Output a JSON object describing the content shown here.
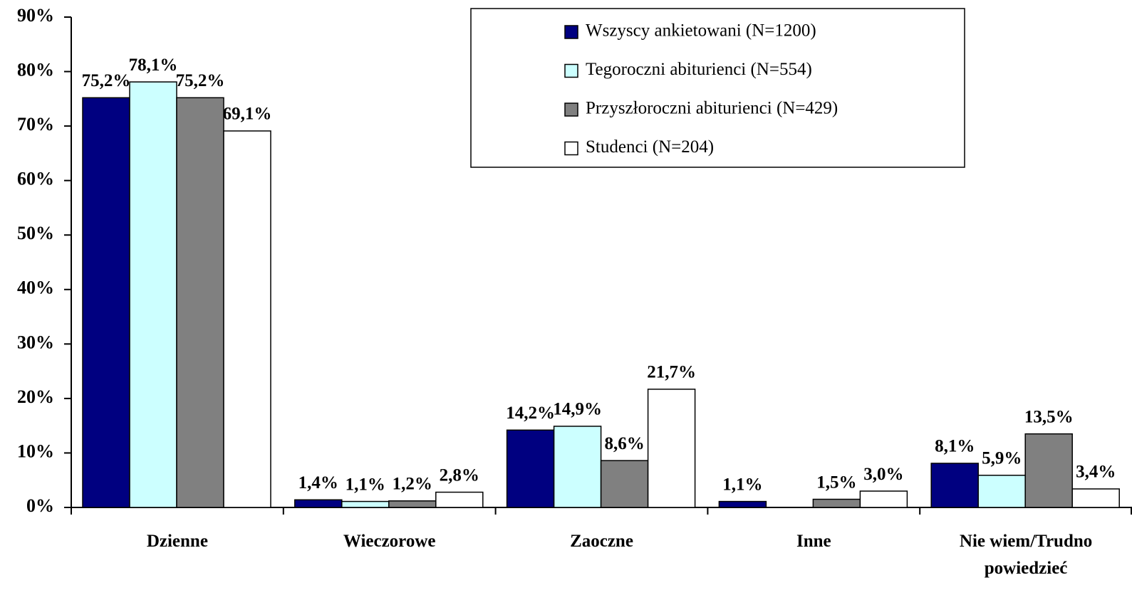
{
  "chart_data": {
    "type": "bar",
    "categories": [
      "Dzienne",
      "Wieczorowe",
      "Zaoczne",
      "Inne",
      "Nie wiem/Trudno powiedzieć"
    ],
    "series": [
      {
        "name": "Wszyscy ankietowani (N=1200)",
        "color": "#000080",
        "values": [
          75.2,
          1.4,
          14.2,
          1.1,
          8.1
        ],
        "value_labels": [
          "75,2%",
          "1,4%",
          "14,2%",
          "1,1%",
          "8,1%"
        ]
      },
      {
        "name": "Tegoroczni abiturienci (N=554)",
        "color": "#ccffff",
        "values": [
          78.1,
          1.1,
          14.9,
          null,
          5.9
        ],
        "value_labels": [
          "78,1%",
          "1,1%",
          "14,9%",
          null,
          "5,9%"
        ]
      },
      {
        "name": "Przyszłoroczni abiturienci (N=429)",
        "color": "#808080",
        "values": [
          75.2,
          1.2,
          8.6,
          1.5,
          13.5
        ],
        "value_labels": [
          "75,2%",
          "1,2%",
          "8,6%",
          "1,5%",
          "13,5%"
        ]
      },
      {
        "name": "Studenci (N=204)",
        "color": "#ffffff",
        "values": [
          69.1,
          2.8,
          21.7,
          3.0,
          3.4
        ],
        "value_labels": [
          "69,1%",
          "2,8%",
          "21,7%",
          "3,0%",
          "3,4%"
        ]
      }
    ],
    "ylim": [
      0,
      90
    ],
    "yticks": [
      {
        "value": 0,
        "label": "0%"
      },
      {
        "value": 10,
        "label": "10%"
      },
      {
        "value": 20,
        "label": "20%"
      },
      {
        "value": 30,
        "label": "30%"
      },
      {
        "value": 40,
        "label": "40%"
      },
      {
        "value": 50,
        "label": "50%"
      },
      {
        "value": 60,
        "label": "60%"
      },
      {
        "value": 70,
        "label": "70%"
      },
      {
        "value": 80,
        "label": "80%"
      },
      {
        "value": 90,
        "label": "90%"
      }
    ],
    "grid": false
  }
}
